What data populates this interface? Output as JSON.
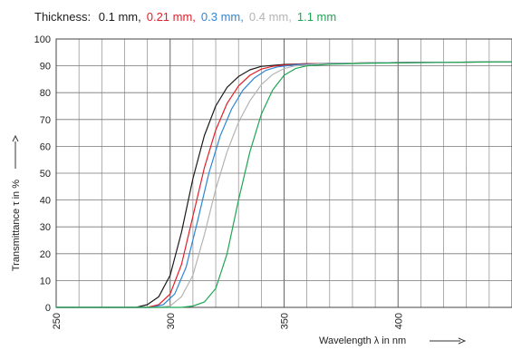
{
  "chart_data": {
    "type": "line",
    "title_prefix": "Thickness:",
    "xlabel": "Wavelength λ in nm",
    "ylabel": "Transmittance τ in %",
    "xlim": [
      250,
      450
    ],
    "ylim": [
      0,
      100
    ],
    "x_ticks": [
      "250",
      "300",
      "350",
      "400"
    ],
    "y_ticks": [
      "0",
      "10",
      "20",
      "30",
      "40",
      "50",
      "60",
      "70",
      "80",
      "90",
      "100"
    ],
    "grid": true,
    "series": [
      {
        "name": "0.1 mm,",
        "color": "#1a1a1a",
        "points": [
          [
            250,
            0
          ],
          [
            285,
            0
          ],
          [
            290,
            1
          ],
          [
            295,
            4
          ],
          [
            300,
            12
          ],
          [
            305,
            28
          ],
          [
            310,
            48
          ],
          [
            315,
            64
          ],
          [
            320,
            75
          ],
          [
            325,
            82
          ],
          [
            330,
            86
          ],
          [
            335,
            88.5
          ],
          [
            340,
            89.8
          ],
          [
            350,
            90.5
          ],
          [
            360,
            90.8
          ],
          [
            380,
            91
          ],
          [
            400,
            91.2
          ],
          [
            450,
            91.5
          ]
        ]
      },
      {
        "name": "0.21 mm,",
        "color": "#e0202a",
        "points": [
          [
            250,
            0
          ],
          [
            290,
            0
          ],
          [
            295,
            1
          ],
          [
            300,
            5
          ],
          [
            305,
            16
          ],
          [
            310,
            34
          ],
          [
            315,
            52
          ],
          [
            320,
            66
          ],
          [
            325,
            76
          ],
          [
            330,
            82.5
          ],
          [
            335,
            86.5
          ],
          [
            340,
            88.8
          ],
          [
            345,
            89.8
          ],
          [
            350,
            90.3
          ],
          [
            360,
            90.8
          ],
          [
            380,
            91
          ],
          [
            400,
            91.2
          ],
          [
            450,
            91.5
          ]
        ]
      },
      {
        "name": "0.3 mm,",
        "color": "#2e86d4",
        "points": [
          [
            250,
            0
          ],
          [
            292,
            0
          ],
          [
            297,
            1
          ],
          [
            302,
            5
          ],
          [
            307,
            15
          ],
          [
            312,
            32
          ],
          [
            317,
            50
          ],
          [
            322,
            64
          ],
          [
            327,
            74
          ],
          [
            332,
            81
          ],
          [
            337,
            85.5
          ],
          [
            342,
            88.3
          ],
          [
            347,
            89.6
          ],
          [
            355,
            90.4
          ],
          [
            370,
            90.9
          ],
          [
            400,
            91.2
          ],
          [
            450,
            91.5
          ]
        ]
      },
      {
        "name": "0.4 mm,",
        "color": "#b4b4b4",
        "points": [
          [
            250,
            0
          ],
          [
            295,
            0
          ],
          [
            300,
            0.5
          ],
          [
            305,
            4
          ],
          [
            310,
            12
          ],
          [
            315,
            27
          ],
          [
            320,
            44
          ],
          [
            325,
            58
          ],
          [
            330,
            69
          ],
          [
            335,
            77
          ],
          [
            340,
            83
          ],
          [
            345,
            86.8
          ],
          [
            350,
            89
          ],
          [
            355,
            90
          ],
          [
            365,
            90.7
          ],
          [
            380,
            91
          ],
          [
            450,
            91.5
          ]
        ]
      },
      {
        "name": "1.1 mm",
        "color": "#1fa653",
        "points": [
          [
            250,
            0
          ],
          [
            305,
            0
          ],
          [
            310,
            0.5
          ],
          [
            315,
            2
          ],
          [
            320,
            7
          ],
          [
            325,
            20
          ],
          [
            330,
            40
          ],
          [
            335,
            58
          ],
          [
            340,
            72
          ],
          [
            345,
            81
          ],
          [
            350,
            86.5
          ],
          [
            355,
            89
          ],
          [
            360,
            90
          ],
          [
            370,
            90.6
          ],
          [
            390,
            91
          ],
          [
            420,
            91.3
          ],
          [
            450,
            91.5
          ]
        ]
      }
    ]
  }
}
